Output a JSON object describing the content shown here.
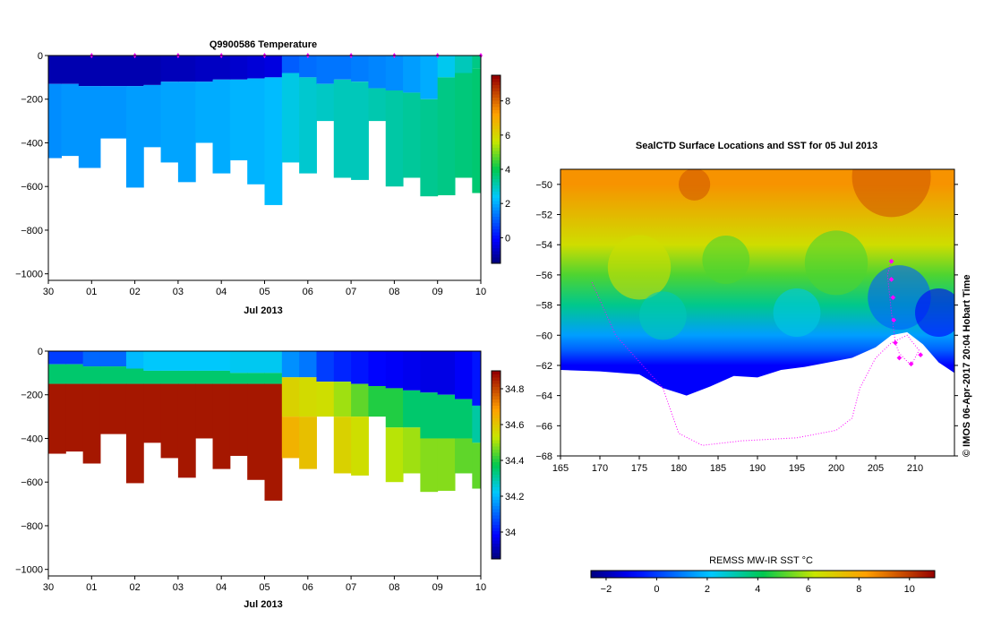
{
  "chart_data": [
    {
      "type": "heatmap",
      "title": "Q9900586  Temperature",
      "xlabel": "Jul 2013",
      "ylabel": "",
      "x_ticks": [
        "30",
        "01",
        "02",
        "03",
        "04",
        "05",
        "06",
        "07",
        "08",
        "09",
        "10"
      ],
      "y_ticks": [
        0,
        -200,
        -400,
        -600,
        -800,
        -1000
      ],
      "ylim": [
        -1030,
        0
      ],
      "colorbar": {
        "ticks": [
          0,
          2,
          4,
          6,
          8
        ],
        "range": [
          -1.5,
          9.5
        ]
      },
      "profiles": [
        {
          "day": 0.0,
          "bottom": -470,
          "layers": [
            [
              -130,
              -1.0
            ],
            [
              -470,
              1.6
            ]
          ]
        },
        {
          "day": 0.3,
          "bottom": -460,
          "layers": [
            [
              -130,
              -1.0
            ],
            [
              -460,
              1.7
            ]
          ]
        },
        {
          "day": 0.7,
          "bottom": -515,
          "layers": [
            [
              -140,
              -1.0
            ],
            [
              -515,
              1.7
            ]
          ]
        },
        {
          "day": 1.2,
          "bottom": -380,
          "layers": [
            [
              -140,
              -1.0
            ],
            [
              -380,
              1.7
            ]
          ]
        },
        {
          "day": 1.8,
          "bottom": -605,
          "layers": [
            [
              -140,
              -1.0
            ],
            [
              -605,
              1.8
            ]
          ]
        },
        {
          "day": 2.2,
          "bottom": -420,
          "layers": [
            [
              -135,
              -1.0
            ],
            [
              -420,
              1.8
            ]
          ]
        },
        {
          "day": 2.6,
          "bottom": -490,
          "layers": [
            [
              -120,
              -0.9
            ],
            [
              -490,
              1.9
            ]
          ]
        },
        {
          "day": 3.0,
          "bottom": -580,
          "layers": [
            [
              -120,
              -0.9
            ],
            [
              -580,
              1.9
            ]
          ]
        },
        {
          "day": 3.4,
          "bottom": -400,
          "layers": [
            [
              -120,
              -0.8
            ],
            [
              -400,
              2.0
            ]
          ]
        },
        {
          "day": 3.8,
          "bottom": -540,
          "layers": [
            [
              -110,
              -0.8
            ],
            [
              -540,
              2.0
            ]
          ]
        },
        {
          "day": 4.2,
          "bottom": -480,
          "layers": [
            [
              -110,
              -0.7
            ],
            [
              -480,
              2.1
            ]
          ]
        },
        {
          "day": 4.6,
          "bottom": -590,
          "layers": [
            [
              -105,
              -0.6
            ],
            [
              -590,
              2.1
            ]
          ]
        },
        {
          "day": 5.0,
          "bottom": -685,
          "layers": [
            [
              -100,
              -0.5
            ],
            [
              -685,
              2.2
            ]
          ]
        },
        {
          "day": 5.4,
          "bottom": -490,
          "layers": [
            [
              -80,
              1.0
            ],
            [
              -490,
              2.6
            ]
          ]
        },
        {
          "day": 5.8,
          "bottom": -540,
          "layers": [
            [
              -100,
              1.2
            ],
            [
              -540,
              2.8
            ]
          ]
        },
        {
          "day": 6.2,
          "bottom": -300,
          "layers": [
            [
              -130,
              1.3
            ],
            [
              -300,
              2.9
            ]
          ]
        },
        {
          "day": 6.6,
          "bottom": -560,
          "layers": [
            [
              -110,
              1.3
            ],
            [
              -560,
              3.0
            ]
          ]
        },
        {
          "day": 7.0,
          "bottom": -570,
          "layers": [
            [
              -120,
              1.4
            ],
            [
              -570,
              3.0
            ]
          ]
        },
        {
          "day": 7.4,
          "bottom": -300,
          "layers": [
            [
              -150,
              1.5
            ],
            [
              -300,
              3.1
            ]
          ]
        },
        {
          "day": 7.8,
          "bottom": -600,
          "layers": [
            [
              -160,
              1.6
            ],
            [
              -600,
              3.2
            ]
          ]
        },
        {
          "day": 8.2,
          "bottom": -560,
          "layers": [
            [
              -170,
              1.8
            ],
            [
              -560,
              3.3
            ]
          ]
        },
        {
          "day": 8.6,
          "bottom": -645,
          "layers": [
            [
              -200,
              2.0
            ],
            [
              -645,
              3.4
            ]
          ]
        },
        {
          "day": 9.0,
          "bottom": -640,
          "layers": [
            [
              -100,
              2.5
            ],
            [
              -640,
              3.5
            ]
          ]
        },
        {
          "day": 9.4,
          "bottom": -560,
          "layers": [
            [
              -80,
              3.0
            ],
            [
              -560,
              3.6
            ]
          ]
        },
        {
          "day": 9.8,
          "bottom": -630,
          "layers": [
            [
              -60,
              3.5
            ],
            [
              -630,
              3.7
            ]
          ]
        }
      ]
    },
    {
      "type": "heatmap",
      "title": "",
      "xlabel": "Jul 2013",
      "ylabel": "",
      "x_ticks": [
        "30",
        "01",
        "02",
        "03",
        "04",
        "05",
        "06",
        "07",
        "08",
        "09",
        "10"
      ],
      "y_ticks": [
        0,
        -200,
        -400,
        -600,
        -800,
        -1000
      ],
      "ylim": [
        -1030,
        0
      ],
      "colorbar": {
        "ticks": [
          34,
          34.2,
          34.4,
          34.6,
          34.8
        ],
        "range": [
          33.85,
          34.9
        ]
      },
      "profiles": [
        {
          "day": 0.0,
          "bottom": -470,
          "layers": [
            [
              -60,
              34.05
            ],
            [
              -150,
              34.35
            ],
            [
              -470,
              34.87
            ]
          ]
        },
        {
          "day": 0.4,
          "bottom": -460,
          "layers": [
            [
              -60,
              34.05
            ],
            [
              -150,
              34.35
            ],
            [
              -460,
              34.87
            ]
          ]
        },
        {
          "day": 0.8,
          "bottom": -515,
          "layers": [
            [
              -70,
              34.1
            ],
            [
              -150,
              34.35
            ],
            [
              -515,
              34.87
            ]
          ]
        },
        {
          "day": 1.2,
          "bottom": -380,
          "layers": [
            [
              -70,
              34.1
            ],
            [
              -150,
              34.35
            ],
            [
              -380,
              34.87
            ]
          ]
        },
        {
          "day": 1.8,
          "bottom": -605,
          "layers": [
            [
              -80,
              34.2
            ],
            [
              -150,
              34.35
            ],
            [
              -605,
              34.87
            ]
          ]
        },
        {
          "day": 2.2,
          "bottom": -420,
          "layers": [
            [
              -90,
              34.22
            ],
            [
              -150,
              34.35
            ],
            [
              -420,
              34.87
            ]
          ]
        },
        {
          "day": 2.6,
          "bottom": -490,
          "layers": [
            [
              -90,
              34.22
            ],
            [
              -150,
              34.35
            ],
            [
              -490,
              34.87
            ]
          ]
        },
        {
          "day": 3.0,
          "bottom": -580,
          "layers": [
            [
              -90,
              34.22
            ],
            [
              -150,
              34.35
            ],
            [
              -580,
              34.87
            ]
          ]
        },
        {
          "day": 3.4,
          "bottom": -400,
          "layers": [
            [
              -90,
              34.22
            ],
            [
              -150,
              34.35
            ],
            [
              -400,
              34.87
            ]
          ]
        },
        {
          "day": 3.8,
          "bottom": -540,
          "layers": [
            [
              -90,
              34.22
            ],
            [
              -150,
              34.35
            ],
            [
              -540,
              34.87
            ]
          ]
        },
        {
          "day": 4.2,
          "bottom": -480,
          "layers": [
            [
              -100,
              34.23
            ],
            [
              -150,
              34.35
            ],
            [
              -480,
              34.87
            ]
          ]
        },
        {
          "day": 4.6,
          "bottom": -590,
          "layers": [
            [
              -100,
              34.23
            ],
            [
              -150,
              34.35
            ],
            [
              -590,
              34.87
            ]
          ]
        },
        {
          "day": 5.0,
          "bottom": -685,
          "layers": [
            [
              -100,
              34.23
            ],
            [
              -150,
              34.35
            ],
            [
              -685,
              34.87
            ]
          ]
        },
        {
          "day": 5.4,
          "bottom": -490,
          "layers": [
            [
              -120,
              34.15
            ],
            [
              -300,
              34.58
            ],
            [
              -490,
              34.65
            ]
          ]
        },
        {
          "day": 5.8,
          "bottom": -540,
          "layers": [
            [
              -120,
              34.12
            ],
            [
              -300,
              34.56
            ],
            [
              -540,
              34.62
            ]
          ]
        },
        {
          "day": 6.2,
          "bottom": -300,
          "layers": [
            [
              -140,
              34.05
            ],
            [
              -300,
              34.55
            ]
          ]
        },
        {
          "day": 6.6,
          "bottom": -560,
          "layers": [
            [
              -140,
              34.02
            ],
            [
              -300,
              34.5
            ],
            [
              -560,
              34.58
            ]
          ]
        },
        {
          "day": 7.0,
          "bottom": -570,
          "layers": [
            [
              -150,
              34.0
            ],
            [
              -300,
              34.45
            ],
            [
              -570,
              34.55
            ]
          ]
        },
        {
          "day": 7.4,
          "bottom": -300,
          "layers": [
            [
              -160,
              33.98
            ],
            [
              -300,
              34.4
            ]
          ]
        },
        {
          "day": 7.8,
          "bottom": -600,
          "layers": [
            [
              -170,
              33.97
            ],
            [
              -350,
              34.4
            ],
            [
              -600,
              34.52
            ]
          ]
        },
        {
          "day": 8.2,
          "bottom": -560,
          "layers": [
            [
              -180,
              33.96
            ],
            [
              -350,
              34.35
            ],
            [
              -560,
              34.5
            ]
          ]
        },
        {
          "day": 8.6,
          "bottom": -645,
          "layers": [
            [
              -190,
              33.95
            ],
            [
              -400,
              34.35
            ],
            [
              -645,
              34.48
            ]
          ]
        },
        {
          "day": 9.0,
          "bottom": -640,
          "layers": [
            [
              -200,
              33.95
            ],
            [
              -400,
              34.35
            ],
            [
              -640,
              34.48
            ]
          ]
        },
        {
          "day": 9.4,
          "bottom": -560,
          "layers": [
            [
              -220,
              33.97
            ],
            [
              -400,
              34.35
            ],
            [
              -560,
              34.45
            ]
          ]
        },
        {
          "day": 9.8,
          "bottom": -630,
          "layers": [
            [
              -250,
              34.0
            ],
            [
              -420,
              34.3
            ],
            [
              -630,
              34.45
            ]
          ]
        }
      ]
    },
    {
      "type": "heatmap",
      "title": "SealCTD Surface Locations and SST for 05 Jul 2013",
      "xlabel": "",
      "ylabel": "",
      "x_ticks": [
        165,
        170,
        175,
        180,
        185,
        190,
        195,
        200,
        205,
        210
      ],
      "y_ticks": [
        -50,
        -52,
        -54,
        -56,
        -58,
        -60,
        -62,
        -64,
        -66,
        -68
      ],
      "xlim": [
        165,
        215
      ],
      "ylim": [
        -68,
        -49
      ],
      "ice_edge": [
        [
          165,
          -62.3
        ],
        [
          170,
          -62.4
        ],
        [
          175,
          -62.6
        ],
        [
          178,
          -63.5
        ],
        [
          181,
          -64.0
        ],
        [
          184,
          -63.4
        ],
        [
          187,
          -62.7
        ],
        [
          190,
          -62.8
        ],
        [
          193,
          -62.3
        ],
        [
          196,
          -62.1
        ],
        [
          199,
          -61.8
        ],
        [
          202,
          -61.5
        ],
        [
          205,
          -60.8
        ],
        [
          207,
          -60.0
        ],
        [
          209,
          -59.8
        ],
        [
          211,
          -60.6
        ],
        [
          213,
          -61.8
        ],
        [
          215,
          -62.5
        ]
      ],
      "sst_bands": [
        [
          -50,
          8.5
        ],
        [
          -54,
          6.5
        ],
        [
          -56,
          5.0
        ],
        [
          -58,
          3.5
        ],
        [
          -60,
          1.5
        ],
        [
          -61,
          0.5
        ],
        [
          -62,
          -1.0
        ]
      ],
      "track": [
        [
          169,
          -56.5
        ],
        [
          172,
          -60
        ],
        [
          178,
          -63.5
        ],
        [
          180,
          -66.5
        ],
        [
          183,
          -67.3
        ],
        [
          188,
          -67
        ],
        [
          195,
          -66.8
        ],
        [
          200,
          -66.3
        ],
        [
          202,
          -65.5
        ],
        [
          203,
          -63.5
        ],
        [
          205,
          -61.5
        ],
        [
          207,
          -60.5
        ],
        [
          209,
          -60.0
        ],
        [
          210.5,
          -61.0
        ],
        [
          209.5,
          -62
        ],
        [
          208,
          -61.2
        ],
        [
          207.5,
          -60.5
        ],
        [
          207,
          -58.5
        ],
        [
          206.5,
          -56
        ],
        [
          207,
          -55
        ]
      ],
      "surface_points": [
        [
          207,
          -55.1
        ],
        [
          207,
          -56.3
        ],
        [
          207.2,
          -57.5
        ],
        [
          207.3,
          -59.0
        ],
        [
          207.5,
          -60.5
        ],
        [
          208,
          -61.5
        ],
        [
          209.5,
          -61.9
        ],
        [
          210.7,
          -61.3
        ]
      ],
      "colorbar": {
        "label": "REMSS MW-IR SST °C",
        "ticks": [
          -2,
          0,
          2,
          4,
          6,
          8,
          10
        ],
        "range": [
          -2.6,
          11
        ]
      },
      "credit": "© IMOS 06-Apr-2017 20:04 Hobart Time"
    }
  ]
}
